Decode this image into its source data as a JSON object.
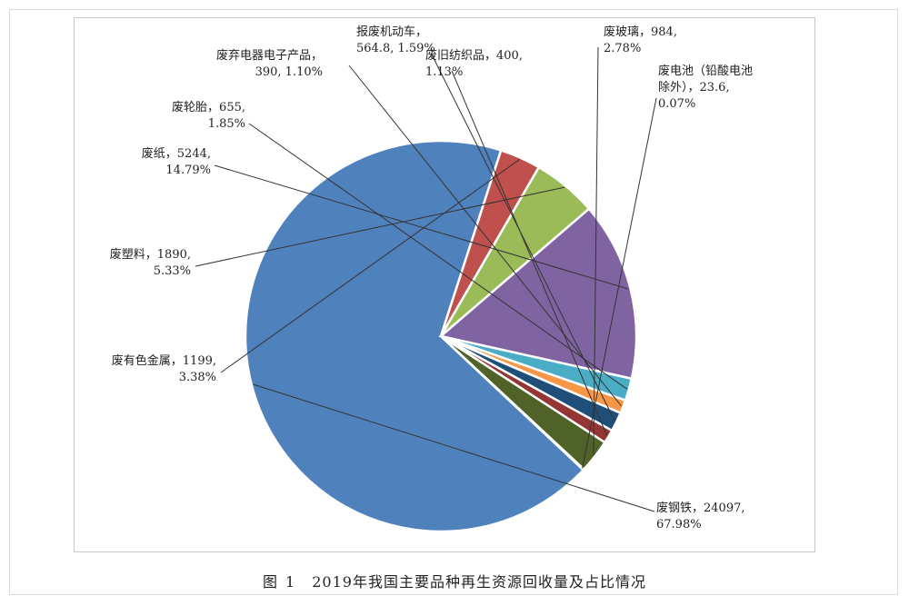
{
  "caption": {
    "prefix": "图",
    "number": "1",
    "text": "2019年我国主要品种再生资源回收量及占比情况"
  },
  "chart_data": {
    "type": "pie",
    "title": "",
    "slices": [
      {
        "label": "废钢铁",
        "value": 24097,
        "percent": "67.98%",
        "color": "#4f81bd",
        "label_lines": [
          "废钢铁，24097,",
          "67.98%"
        ]
      },
      {
        "label": "废有色金属",
        "value": 1199,
        "percent": "3.38%",
        "color": "#c0504d",
        "label_lines": [
          "废有色金属，1199,",
          "3.38%"
        ]
      },
      {
        "label": "废塑料",
        "value": 1890,
        "percent": "5.33%",
        "color": "#9bbb59",
        "label_lines": [
          "废塑料，1890,",
          "5.33%"
        ]
      },
      {
        "label": "废纸",
        "value": 5244,
        "percent": "14.79%",
        "color": "#8064a2",
        "label_lines": [
          "废纸，5244,",
          "14.79%"
        ]
      },
      {
        "label": "废轮胎",
        "value": 655,
        "percent": "1.85%",
        "color": "#4bacc6",
        "label_lines": [
          "废轮胎，655,",
          "1.85%"
        ]
      },
      {
        "label": "废弃电器电子产品",
        "value": 390,
        "percent": "1.10%",
        "color": "#f79646",
        "label_lines": [
          "废弃电器电子产品，",
          "390, 1.10%"
        ]
      },
      {
        "label": "报废机动车",
        "value": 564.8,
        "percent": "1.59%",
        "color": "#1f4e79",
        "label_lines": [
          "报废机动车，",
          "564.8, 1.59%"
        ]
      },
      {
        "label": "废旧纺织品",
        "value": 400,
        "percent": "1.13%",
        "color": "#943634",
        "label_lines": [
          "废旧纺织品，400,",
          "1.13%"
        ]
      },
      {
        "label": "废玻璃",
        "value": 984,
        "percent": "2.78%",
        "color": "#4f6228",
        "label_lines": [
          "废玻璃，984,",
          "2.78%"
        ]
      },
      {
        "label": "废电池（铅酸电池除外）",
        "value": 23.6,
        "percent": "0.07%",
        "color": "#3f3151",
        "label_lines": [
          "废电池（铅酸电池",
          "除外），23.6,",
          "0.07%"
        ]
      }
    ]
  }
}
